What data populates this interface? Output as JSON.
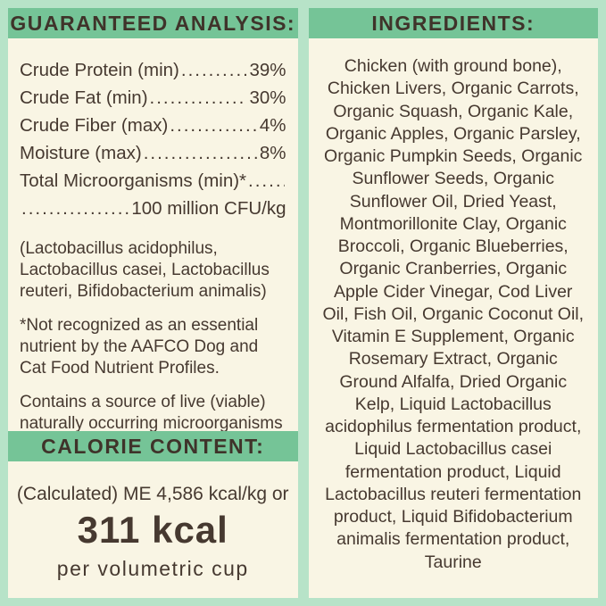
{
  "colors": {
    "border_mint": "#b7e3c8",
    "band_green": "#75c497",
    "panel_cream": "#f9f5e4",
    "text_brown": "#463930"
  },
  "guaranteed_analysis": {
    "header": "GUARANTEED ANALYSIS:",
    "rows": [
      {
        "label": "Crude Protein (min)",
        "value": "39%"
      },
      {
        "label": "Crude Fat (min)",
        "value": "30%"
      },
      {
        "label": "Crude Fiber (max)",
        "value": "4%"
      },
      {
        "label": "Moisture (max)",
        "value": "8%"
      }
    ],
    "microorganisms": {
      "label": "Total Microorganisms (min)*",
      "value": "100 million CFU/kg"
    },
    "strains_note": "(Lactobacillus acidophilus, Lactobacillus casei, Lactobacillus reuteri, Bifidobacterium animalis)",
    "aafco_footnote": "*Not recognized as an essential nutrient by the AAFCO Dog and Cat Food Nutrient Profiles.",
    "live_note": "Contains a source of live (viable) naturally occurring microorganisms"
  },
  "calorie_content": {
    "header": "CALORIE CONTENT:",
    "line1": "(Calculated) ME 4,586 kcal/kg or",
    "kcal": "311 kcal",
    "line3": "per volumetric cup"
  },
  "ingredients": {
    "header": "INGREDIENTS:",
    "text": "Chicken (with ground bone), Chicken Livers, Organic Carrots, Organic Squash, Organic Kale, Organic Apples, Organic Parsley, Organic Pumpkin Seeds, Organic Sunflower Seeds, Organic Sunflower Oil, Dried Yeast, Montmorillonite Clay, Organic Broccoli, Organic Blueberries, Organic Cranberries, Organic Apple Cider Vinegar, Cod Liver Oil, Fish Oil, Organic Coconut Oil, Vitamin E Supplement, Organic Rosemary Extract, Organic Ground Alfalfa, Dried Organic Kelp, Liquid Lactobacillus acidophilus fermentation product, Liquid Lactobacillus casei fermentation product, Liquid Lactobacillus reuteri fermentation product, Liquid Bifidobacterium animalis fermentation product, Taurine"
  }
}
